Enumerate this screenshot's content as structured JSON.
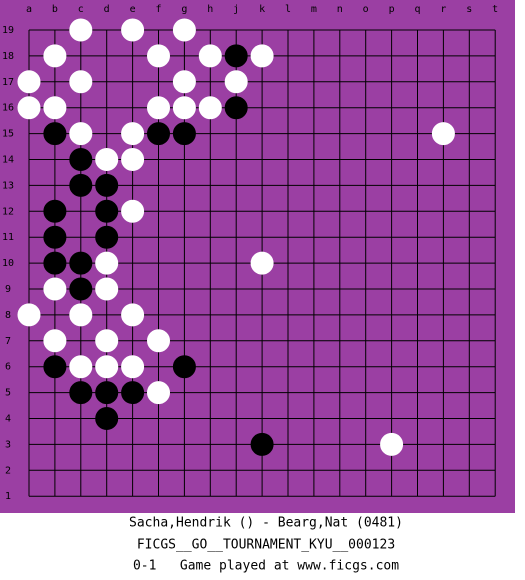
{
  "board": {
    "columns": [
      "a",
      "b",
      "c",
      "d",
      "e",
      "f",
      "g",
      "h",
      "j",
      "k",
      "l",
      "m",
      "n",
      "o",
      "p",
      "q",
      "r",
      "s",
      "t"
    ],
    "rows": [
      19,
      18,
      17,
      16,
      15,
      14,
      13,
      12,
      11,
      10,
      9,
      8,
      7,
      6,
      5,
      4,
      3,
      2,
      1
    ],
    "stones": [
      {
        "col": "c",
        "row": 19,
        "color": "white"
      },
      {
        "col": "e",
        "row": 19,
        "color": "white"
      },
      {
        "col": "g",
        "row": 19,
        "color": "white"
      },
      {
        "col": "b",
        "row": 18,
        "color": "white"
      },
      {
        "col": "f",
        "row": 18,
        "color": "white"
      },
      {
        "col": "h",
        "row": 18,
        "color": "white"
      },
      {
        "col": "j",
        "row": 18,
        "color": "black"
      },
      {
        "col": "k",
        "row": 18,
        "color": "white"
      },
      {
        "col": "a",
        "row": 17,
        "color": "white"
      },
      {
        "col": "c",
        "row": 17,
        "color": "white"
      },
      {
        "col": "g",
        "row": 17,
        "color": "white"
      },
      {
        "col": "j",
        "row": 17,
        "color": "white"
      },
      {
        "col": "a",
        "row": 16,
        "color": "white"
      },
      {
        "col": "b",
        "row": 16,
        "color": "white"
      },
      {
        "col": "f",
        "row": 16,
        "color": "white"
      },
      {
        "col": "g",
        "row": 16,
        "color": "white"
      },
      {
        "col": "h",
        "row": 16,
        "color": "white"
      },
      {
        "col": "j",
        "row": 16,
        "color": "black"
      },
      {
        "col": "b",
        "row": 15,
        "color": "black"
      },
      {
        "col": "c",
        "row": 15,
        "color": "white"
      },
      {
        "col": "e",
        "row": 15,
        "color": "white"
      },
      {
        "col": "f",
        "row": 15,
        "color": "black"
      },
      {
        "col": "g",
        "row": 15,
        "color": "black"
      },
      {
        "col": "r",
        "row": 15,
        "color": "white"
      },
      {
        "col": "c",
        "row": 14,
        "color": "black"
      },
      {
        "col": "d",
        "row": 14,
        "color": "white"
      },
      {
        "col": "e",
        "row": 14,
        "color": "white"
      },
      {
        "col": "c",
        "row": 13,
        "color": "black"
      },
      {
        "col": "d",
        "row": 13,
        "color": "black"
      },
      {
        "col": "b",
        "row": 12,
        "color": "black"
      },
      {
        "col": "d",
        "row": 12,
        "color": "black"
      },
      {
        "col": "e",
        "row": 12,
        "color": "white"
      },
      {
        "col": "b",
        "row": 11,
        "color": "black"
      },
      {
        "col": "d",
        "row": 11,
        "color": "black"
      },
      {
        "col": "b",
        "row": 10,
        "color": "black"
      },
      {
        "col": "c",
        "row": 10,
        "color": "black"
      },
      {
        "col": "d",
        "row": 10,
        "color": "white"
      },
      {
        "col": "k",
        "row": 10,
        "color": "white"
      },
      {
        "col": "b",
        "row": 9,
        "color": "white"
      },
      {
        "col": "c",
        "row": 9,
        "color": "black"
      },
      {
        "col": "d",
        "row": 9,
        "color": "white"
      },
      {
        "col": "a",
        "row": 8,
        "color": "white"
      },
      {
        "col": "c",
        "row": 8,
        "color": "white"
      },
      {
        "col": "e",
        "row": 8,
        "color": "white"
      },
      {
        "col": "b",
        "row": 7,
        "color": "white"
      },
      {
        "col": "d",
        "row": 7,
        "color": "white"
      },
      {
        "col": "f",
        "row": 7,
        "color": "white"
      },
      {
        "col": "b",
        "row": 6,
        "color": "black"
      },
      {
        "col": "c",
        "row": 6,
        "color": "white"
      },
      {
        "col": "d",
        "row": 6,
        "color": "white"
      },
      {
        "col": "e",
        "row": 6,
        "color": "white"
      },
      {
        "col": "g",
        "row": 6,
        "color": "black"
      },
      {
        "col": "c",
        "row": 5,
        "color": "black"
      },
      {
        "col": "d",
        "row": 5,
        "color": "black"
      },
      {
        "col": "e",
        "row": 5,
        "color": "black"
      },
      {
        "col": "f",
        "row": 5,
        "color": "white"
      },
      {
        "col": "d",
        "row": 4,
        "color": "black"
      },
      {
        "col": "k",
        "row": 3,
        "color": "black"
      },
      {
        "col": "p",
        "row": 3,
        "color": "white"
      }
    ]
  },
  "footer": {
    "players": "Sacha,Hendrik () - Bearg,Nat (0481)",
    "tournament": "FICGS__GO__TOURNAMENT_KYU__000123",
    "result": "0-1   Game played at www.ficgs.com"
  }
}
